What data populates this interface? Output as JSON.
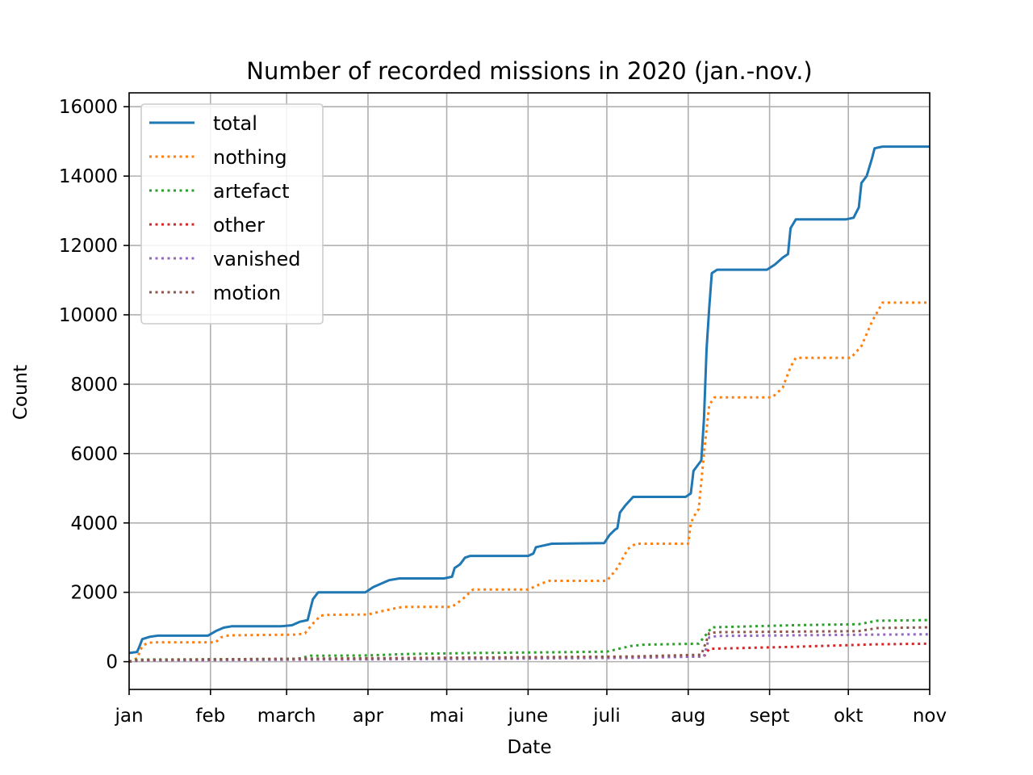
{
  "chart_data": {
    "type": "line",
    "title": "Number of recorded missions in 2020 (jan.-nov.)",
    "xlabel": "Date",
    "ylabel": "Count",
    "x_ticks": [
      "jan",
      "feb",
      "march",
      "apr",
      "mai",
      "june",
      "juli",
      "aug",
      "sept",
      "okt",
      "nov"
    ],
    "y_ticks": [
      "0",
      "2000",
      "4000",
      "6000",
      "8000",
      "10000",
      "12000",
      "14000",
      "16000"
    ],
    "xlim": [
      "2020-01-01",
      "2020-11-01"
    ],
    "ylim": [
      -800,
      16400
    ],
    "grid": true,
    "legend_position": "upper-left",
    "series": [
      {
        "name": "total",
        "color": "#1f77b4",
        "style": "solid",
        "points": [
          [
            "2020-01-01",
            250
          ],
          [
            "2020-01-04",
            280
          ],
          [
            "2020-01-05",
            450
          ],
          [
            "2020-01-06",
            650
          ],
          [
            "2020-01-09",
            720
          ],
          [
            "2020-01-12",
            750
          ],
          [
            "2020-01-31",
            750
          ],
          [
            "2020-02-03",
            880
          ],
          [
            "2020-02-06",
            980
          ],
          [
            "2020-02-09",
            1020
          ],
          [
            "2020-02-28",
            1020
          ],
          [
            "2020-03-03",
            1050
          ],
          [
            "2020-03-06",
            1150
          ],
          [
            "2020-03-09",
            1200
          ],
          [
            "2020-03-10",
            1500
          ],
          [
            "2020-03-11",
            1800
          ],
          [
            "2020-03-13",
            2000
          ],
          [
            "2020-03-31",
            2000
          ],
          [
            "2020-04-03",
            2150
          ],
          [
            "2020-04-06",
            2250
          ],
          [
            "2020-04-09",
            2350
          ],
          [
            "2020-04-13",
            2400
          ],
          [
            "2020-04-30",
            2400
          ],
          [
            "2020-05-03",
            2450
          ],
          [
            "2020-05-04",
            2700
          ],
          [
            "2020-05-06",
            2800
          ],
          [
            "2020-05-08",
            3000
          ],
          [
            "2020-05-10",
            3050
          ],
          [
            "2020-06-01",
            3050
          ],
          [
            "2020-06-03",
            3120
          ],
          [
            "2020-06-04",
            3300
          ],
          [
            "2020-06-07",
            3350
          ],
          [
            "2020-06-10",
            3400
          ],
          [
            "2020-06-30",
            3420
          ],
          [
            "2020-07-02",
            3650
          ],
          [
            "2020-07-04",
            3800
          ],
          [
            "2020-07-05",
            3850
          ],
          [
            "2020-07-06",
            4300
          ],
          [
            "2020-07-08",
            4500
          ],
          [
            "2020-07-11",
            4750
          ],
          [
            "2020-07-31",
            4750
          ],
          [
            "2020-08-02",
            4850
          ],
          [
            "2020-08-03",
            5500
          ],
          [
            "2020-08-04",
            5600
          ],
          [
            "2020-08-06",
            5800
          ],
          [
            "2020-08-07",
            7000
          ],
          [
            "2020-08-08",
            9000
          ],
          [
            "2020-08-09",
            10200
          ],
          [
            "2020-08-10",
            11200
          ],
          [
            "2020-08-12",
            11300
          ],
          [
            "2020-08-31",
            11300
          ],
          [
            "2020-09-03",
            11450
          ],
          [
            "2020-09-06",
            11650
          ],
          [
            "2020-09-08",
            11750
          ],
          [
            "2020-09-09",
            12500
          ],
          [
            "2020-09-11",
            12750
          ],
          [
            "2020-09-30",
            12750
          ],
          [
            "2020-10-03",
            12800
          ],
          [
            "2020-10-05",
            13100
          ],
          [
            "2020-10-06",
            13800
          ],
          [
            "2020-10-08",
            14000
          ],
          [
            "2020-10-10",
            14500
          ],
          [
            "2020-10-11",
            14800
          ],
          [
            "2020-10-14",
            14850
          ],
          [
            "2020-11-01",
            14850
          ]
        ]
      },
      {
        "name": "nothing",
        "color": "#ff7f0e",
        "style": "dotted",
        "points": [
          [
            "2020-01-01",
            0
          ],
          [
            "2020-01-04",
            100
          ],
          [
            "2020-01-06",
            450
          ],
          [
            "2020-01-08",
            540
          ],
          [
            "2020-01-11",
            560
          ],
          [
            "2020-02-03",
            560
          ],
          [
            "2020-02-05",
            700
          ],
          [
            "2020-02-08",
            760
          ],
          [
            "2020-03-05",
            780
          ],
          [
            "2020-03-08",
            820
          ],
          [
            "2020-03-11",
            1100
          ],
          [
            "2020-03-14",
            1330
          ],
          [
            "2020-03-17",
            1350
          ],
          [
            "2020-04-01",
            1360
          ],
          [
            "2020-04-06",
            1450
          ],
          [
            "2020-04-12",
            1550
          ],
          [
            "2020-04-15",
            1580
          ],
          [
            "2020-05-03",
            1580
          ],
          [
            "2020-05-07",
            1800
          ],
          [
            "2020-05-11",
            2080
          ],
          [
            "2020-06-01",
            2080
          ],
          [
            "2020-06-06",
            2250
          ],
          [
            "2020-06-09",
            2330
          ],
          [
            "2020-07-01",
            2330
          ],
          [
            "2020-07-05",
            2700
          ],
          [
            "2020-07-09",
            3250
          ],
          [
            "2020-07-12",
            3400
          ],
          [
            "2020-08-01",
            3400
          ],
          [
            "2020-08-02",
            4000
          ],
          [
            "2020-08-04",
            4300
          ],
          [
            "2020-08-05",
            4400
          ],
          [
            "2020-08-07",
            6000
          ],
          [
            "2020-08-09",
            7400
          ],
          [
            "2020-08-11",
            7620
          ],
          [
            "2020-09-02",
            7620
          ],
          [
            "2020-09-06",
            7900
          ],
          [
            "2020-09-09",
            8500
          ],
          [
            "2020-09-11",
            8760
          ],
          [
            "2020-10-02",
            8760
          ],
          [
            "2020-10-06",
            9100
          ],
          [
            "2020-10-10",
            9800
          ],
          [
            "2020-10-14",
            10350
          ],
          [
            "2020-11-01",
            10350
          ]
        ]
      },
      {
        "name": "artefact",
        "color": "#2ca02c",
        "style": "dotted",
        "points": [
          [
            "2020-01-01",
            0
          ],
          [
            "2020-01-04",
            60
          ],
          [
            "2020-03-05",
            80
          ],
          [
            "2020-03-10",
            170
          ],
          [
            "2020-04-01",
            180
          ],
          [
            "2020-04-15",
            220
          ],
          [
            "2020-05-10",
            250
          ],
          [
            "2020-06-10",
            270
          ],
          [
            "2020-07-01",
            290
          ],
          [
            "2020-07-10",
            450
          ],
          [
            "2020-07-15",
            490
          ],
          [
            "2020-08-05",
            520
          ],
          [
            "2020-08-08",
            800
          ],
          [
            "2020-08-10",
            990
          ],
          [
            "2020-09-10",
            1050
          ],
          [
            "2020-10-05",
            1080
          ],
          [
            "2020-10-12",
            1180
          ],
          [
            "2020-11-01",
            1200
          ]
        ]
      },
      {
        "name": "other",
        "color": "#d62728",
        "style": "dotted",
        "points": [
          [
            "2020-01-01",
            0
          ],
          [
            "2020-01-04",
            40
          ],
          [
            "2020-03-10",
            70
          ],
          [
            "2020-05-10",
            100
          ],
          [
            "2020-07-10",
            130
          ],
          [
            "2020-08-07",
            150
          ],
          [
            "2020-08-09",
            370
          ],
          [
            "2020-09-10",
            430
          ],
          [
            "2020-10-12",
            500
          ],
          [
            "2020-11-01",
            520
          ]
        ]
      },
      {
        "name": "vanished",
        "color": "#9467bd",
        "style": "dotted",
        "points": [
          [
            "2020-01-01",
            0
          ],
          [
            "2020-01-05",
            30
          ],
          [
            "2020-03-10",
            60
          ],
          [
            "2020-05-10",
            80
          ],
          [
            "2020-07-10",
            110
          ],
          [
            "2020-08-07",
            150
          ],
          [
            "2020-08-09",
            700
          ],
          [
            "2020-08-12",
            740
          ],
          [
            "2020-10-12",
            780
          ],
          [
            "2020-11-01",
            790
          ]
        ]
      },
      {
        "name": "motion",
        "color": "#8c564b",
        "style": "dotted",
        "points": [
          [
            "2020-01-01",
            0
          ],
          [
            "2020-01-05",
            50
          ],
          [
            "2020-03-10",
            90
          ],
          [
            "2020-05-10",
            120
          ],
          [
            "2020-07-10",
            150
          ],
          [
            "2020-08-06",
            200
          ],
          [
            "2020-08-09",
            820
          ],
          [
            "2020-08-12",
            850
          ],
          [
            "2020-10-05",
            880
          ],
          [
            "2020-10-12",
            970
          ],
          [
            "2020-11-01",
            990
          ]
        ]
      }
    ]
  }
}
